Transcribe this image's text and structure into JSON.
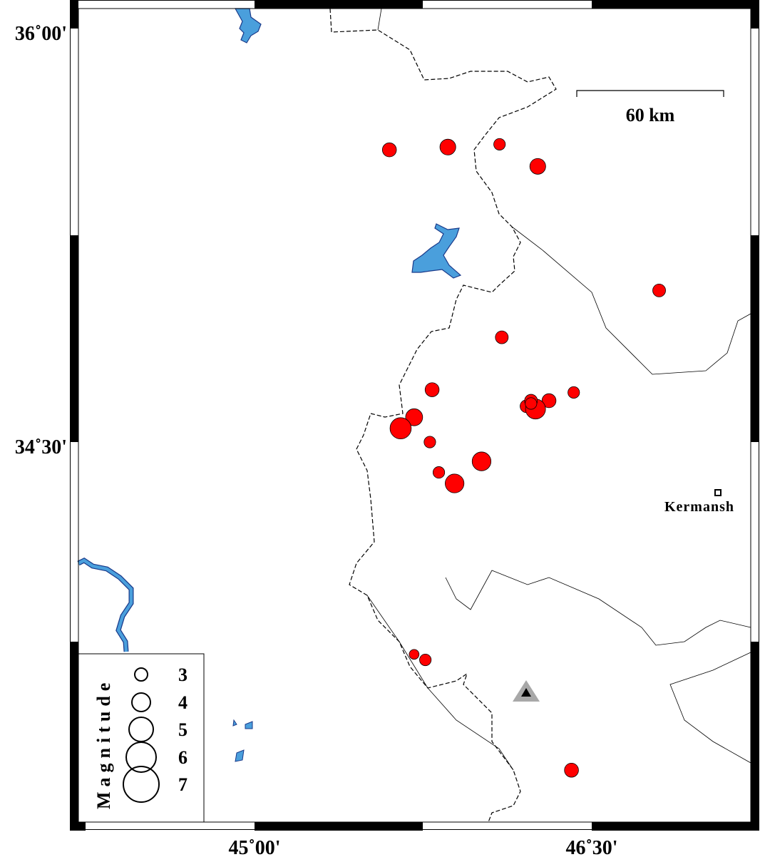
{
  "map": {
    "extent": {
      "lon_min": 44.22,
      "lon_max": 47.24,
      "lat_min": 33.06,
      "lat_max": 36.07
    },
    "lat_ticks": [
      {
        "value": 36.0,
        "label": "36˚00'"
      },
      {
        "value": 34.5,
        "label": "34˚30'"
      }
    ],
    "lon_ticks": [
      {
        "value": 45.0,
        "label": "45˚00'"
      },
      {
        "value": 46.5,
        "label": "46˚30'"
      }
    ],
    "scale_bar": {
      "label": "60 km"
    },
    "city": {
      "name": "Kermansh",
      "lon": 47.06,
      "lat": 34.32
    },
    "station": {
      "lon": 46.21,
      "lat": 33.59
    },
    "colors": {
      "event": "#ff0000",
      "water": "#4a9fdc",
      "station": "#a8a8a8"
    }
  },
  "legend": {
    "title": "Magnitude",
    "items": [
      {
        "mag": 3,
        "label": "3"
      },
      {
        "mag": 4,
        "label": "4"
      },
      {
        "mag": 5,
        "label": "5"
      },
      {
        "mag": 6,
        "label": "6"
      },
      {
        "mag": 7,
        "label": "7"
      }
    ]
  },
  "events": [
    {
      "lon": 45.6,
      "lat": 35.56,
      "mag": 3.2
    },
    {
      "lon": 45.86,
      "lat": 35.57,
      "mag": 3.5
    },
    {
      "lon": 46.09,
      "lat": 35.58,
      "mag": 2.8
    },
    {
      "lon": 46.26,
      "lat": 35.5,
      "mag": 3.5
    },
    {
      "lon": 46.8,
      "lat": 35.05,
      "mag": 3.0
    },
    {
      "lon": 46.1,
      "lat": 34.88,
      "mag": 3.0
    },
    {
      "lon": 45.79,
      "lat": 34.69,
      "mag": 3.2
    },
    {
      "lon": 46.42,
      "lat": 34.68,
      "mag": 2.8
    },
    {
      "lon": 46.31,
      "lat": 34.65,
      "mag": 3.2
    },
    {
      "lon": 46.21,
      "lat": 34.63,
      "mag": 3.0
    },
    {
      "lon": 46.25,
      "lat": 34.62,
      "mag": 4.2
    },
    {
      "lon": 46.23,
      "lat": 34.65,
      "mag": 3.0
    },
    {
      "lon": 46.23,
      "lat": 34.64,
      "mag": 2.8
    },
    {
      "lon": 45.71,
      "lat": 34.59,
      "mag": 3.7
    },
    {
      "lon": 45.65,
      "lat": 34.55,
      "mag": 4.4
    },
    {
      "lon": 45.78,
      "lat": 34.5,
      "mag": 2.8
    },
    {
      "lon": 46.01,
      "lat": 34.43,
      "mag": 4.0
    },
    {
      "lon": 45.82,
      "lat": 34.39,
      "mag": 2.8
    },
    {
      "lon": 45.89,
      "lat": 34.35,
      "mag": 4.0
    },
    {
      "lon": 45.71,
      "lat": 33.73,
      "mag": 2.5
    },
    {
      "lon": 45.76,
      "lat": 33.71,
      "mag": 2.8
    },
    {
      "lon": 46.41,
      "lat": 33.31,
      "mag": 3.2
    }
  ]
}
